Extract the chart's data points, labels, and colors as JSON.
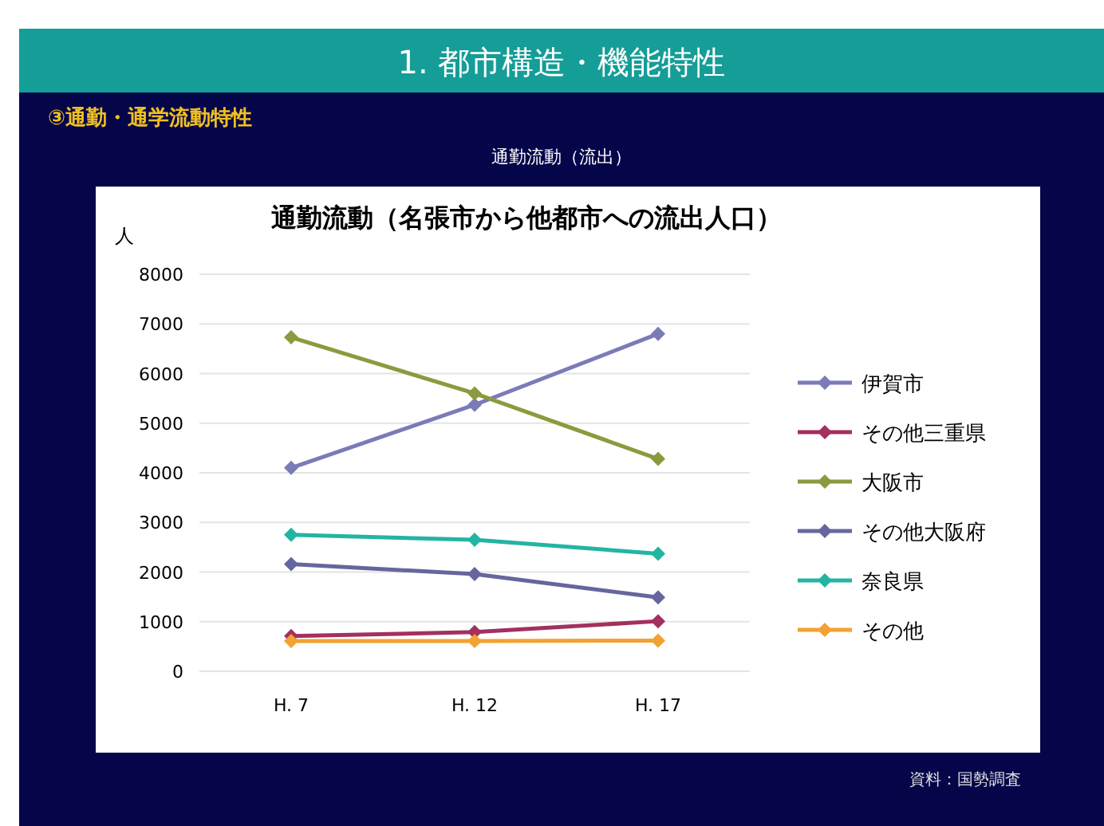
{
  "chart_data": {
    "type": "line",
    "title": "通勤流動（名張市から他都市への流出人口）",
    "subtitle": "③通勤・通学流動特性",
    "ylabel": "人",
    "annotations": [
      "1. 都市構造・機能特性",
      "通勤流動（流出）",
      "資料：国勢調査"
    ],
    "categories": [
      "H. 7",
      "H. 12",
      "H. 17"
    ],
    "ylim": [
      0,
      8000
    ],
    "yticks": [
      0,
      1000,
      2000,
      3000,
      4000,
      5000,
      6000,
      7000,
      8000
    ],
    "grid": "y",
    "legend": "right",
    "marker": "diamond",
    "series": [
      {
        "name": "伊賀市",
        "color": "#7b7bb8",
        "values": [
          4100,
          5370,
          6800
        ]
      },
      {
        "name": "その他三重県",
        "color": "#a3305f",
        "values": [
          710,
          790,
          1010
        ]
      },
      {
        "name": "大阪市",
        "color": "#8c9a3e",
        "values": [
          6730,
          5600,
          4280
        ]
      },
      {
        "name": "その他大阪府",
        "color": "#66669e",
        "values": [
          2160,
          1960,
          1490
        ]
      },
      {
        "name": "奈良県",
        "color": "#22b5a2",
        "values": [
          2750,
          2650,
          2370
        ]
      },
      {
        "name": "その他",
        "color": "#f2a232",
        "values": [
          610,
          610,
          620
        ]
      }
    ]
  }
}
